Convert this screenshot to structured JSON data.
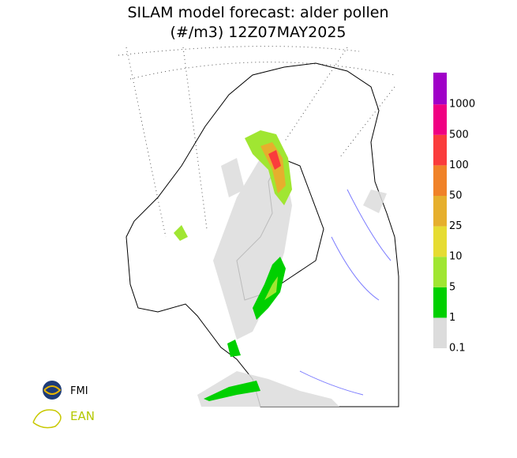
{
  "title": {
    "line1": "SILAM model forecast: alder pollen",
    "line2": "(#/m3) 12Z07MAY2025"
  },
  "colorbar": {
    "colors": [
      "#dcdcdc",
      "#00d000",
      "#a0e632",
      "#e6dc32",
      "#e6af2d",
      "#f08228",
      "#fa3c3c",
      "#f00082",
      "#a000c8"
    ],
    "labels": [
      "0.1",
      "1",
      "5",
      "10",
      "25",
      "50",
      "100",
      "500",
      "1000"
    ]
  },
  "logos": {
    "fmi": "FMI",
    "ean": "EAN"
  }
}
